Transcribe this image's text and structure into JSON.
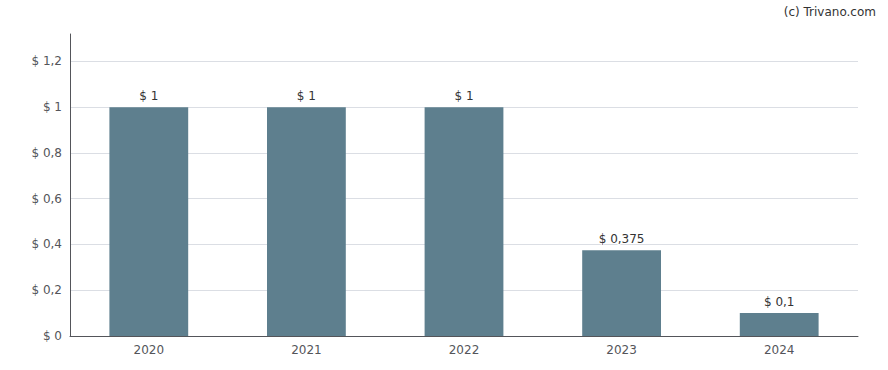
{
  "chart_data": {
    "type": "bar",
    "categories": [
      "2020",
      "2021",
      "2022",
      "2023",
      "2024"
    ],
    "values": [
      1.0,
      1.0,
      1.0,
      0.375,
      0.1
    ],
    "value_labels": [
      "$ 1",
      "$ 1",
      "$ 1",
      "$ 0,375",
      "$ 0,1"
    ],
    "color": "#5e7f8e",
    "ylim": [
      0,
      1.32
    ],
    "yticks": [
      {
        "value": 0,
        "label": "$ 0"
      },
      {
        "value": 0.2,
        "label": "$ 0,2"
      },
      {
        "value": 0.4,
        "label": "$ 0,4"
      },
      {
        "value": 0.6,
        "label": "$ 0,6"
      },
      {
        "value": 0.8,
        "label": "$ 0,8"
      },
      {
        "value": 1.0,
        "label": "$ 1"
      },
      {
        "value": 1.2,
        "label": "$ 1,2"
      }
    ],
    "grid": true,
    "data_labels": true,
    "annotations": [
      "(c) Trivano.com"
    ]
  }
}
